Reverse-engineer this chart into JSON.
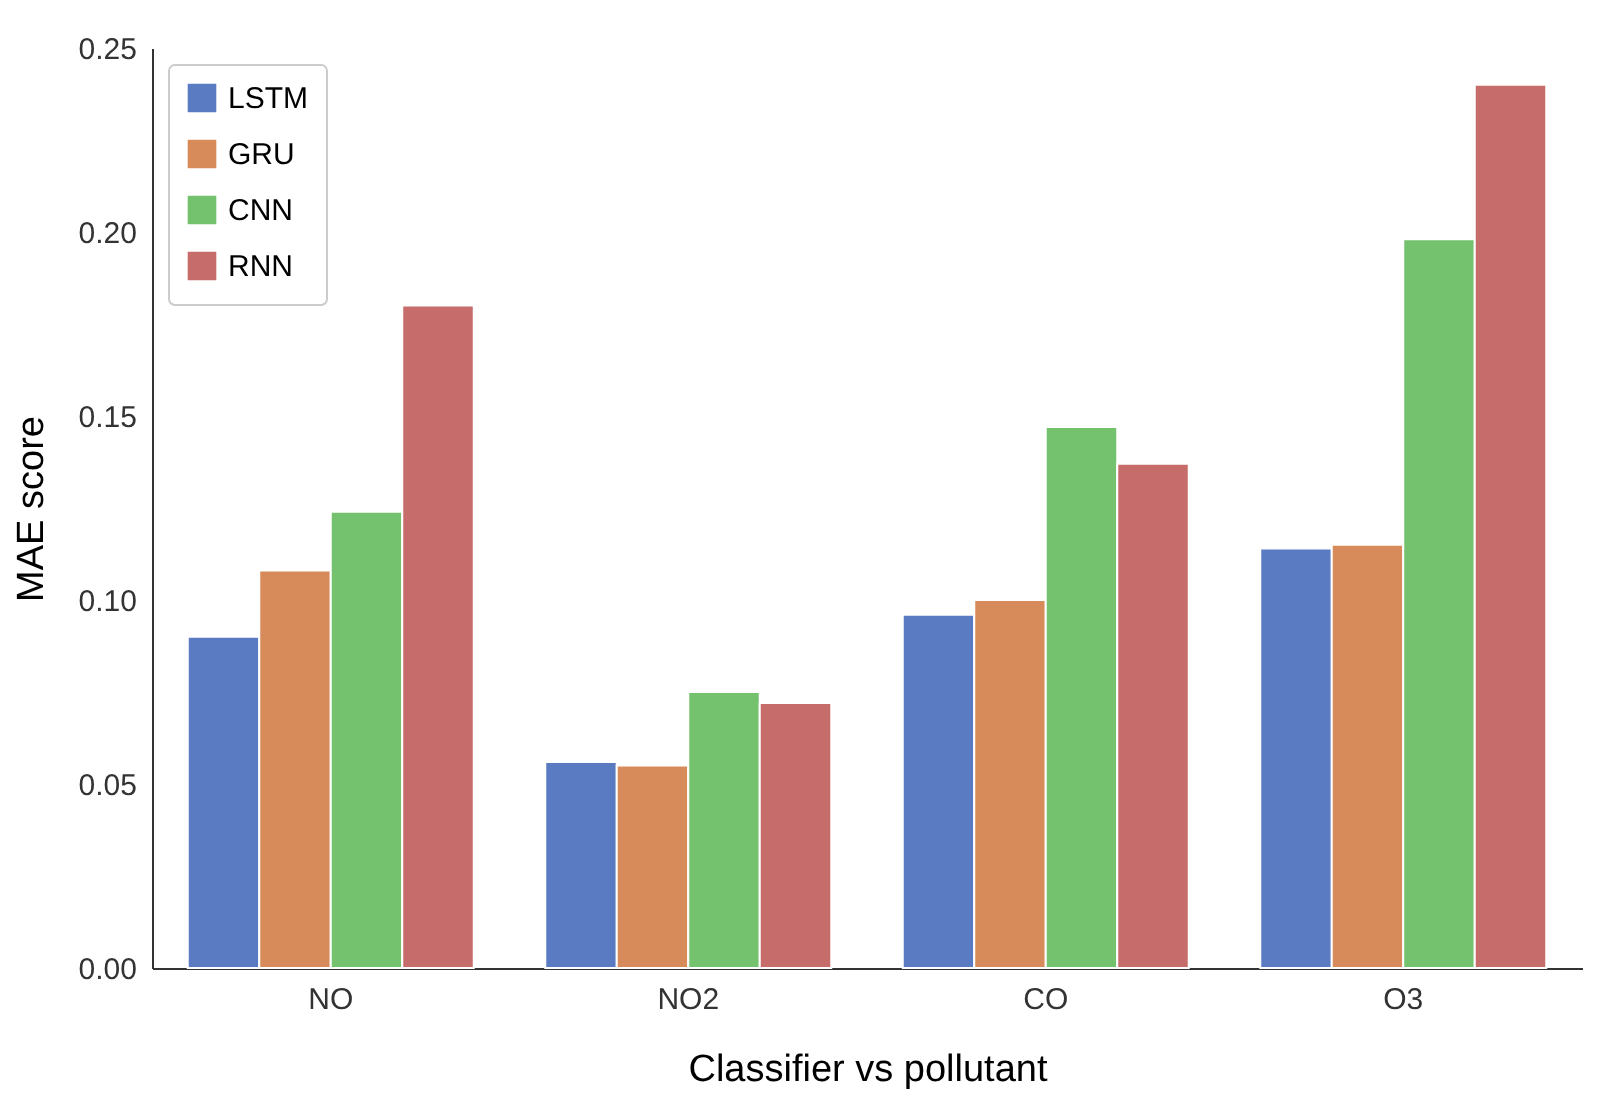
{
  "chart_data": {
    "type": "bar",
    "xlabel": "Classifier vs pollutant",
    "ylabel": "MAE score",
    "categories": [
      "NO",
      "NO2",
      "CO",
      "O3"
    ],
    "series": [
      {
        "name": "LSTM",
        "color": "#5a7bc2",
        "values": [
          0.09,
          0.056,
          0.096,
          0.114
        ]
      },
      {
        "name": "GRU",
        "color": "#d88b5a",
        "values": [
          0.108,
          0.055,
          0.1,
          0.115
        ]
      },
      {
        "name": "CNN",
        "color": "#74c26e",
        "values": [
          0.124,
          0.075,
          0.147,
          0.198
        ]
      },
      {
        "name": "RNN",
        "color": "#c66c6a",
        "values": [
          0.18,
          0.072,
          0.137,
          0.24
        ]
      }
    ],
    "ylim": [
      0,
      0.25
    ],
    "yticks": [
      {
        "value": 0,
        "label": "0.00"
      },
      0.05,
      {
        "value": 0.1,
        "label": "0.10"
      },
      0.15,
      {
        "value": 0.2,
        "label": "0.20"
      },
      0.25
    ],
    "grid": false,
    "legend": "top left"
  }
}
